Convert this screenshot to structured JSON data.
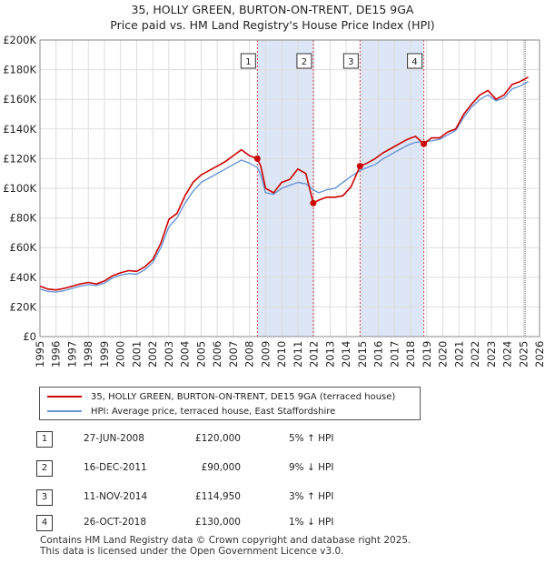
{
  "title_line1": "35, HOLLY GREEN, BURTON-ON-TRENT, DE15 9GA",
  "title_line2": "Price paid vs. HM Land Registry's House Price Index (HPI)",
  "chart_data": {
    "type": "line",
    "title": "35, HOLLY GREEN, BURTON-ON-TRENT, DE15 9GA — Price paid vs. HM Land Registry's House Price Index (HPI)",
    "xlabel": "",
    "ylabel": "",
    "xlim": [
      1995.0,
      2026.0
    ],
    "ylim": [
      0,
      200000
    ],
    "y_ticks": [
      0,
      20000,
      40000,
      60000,
      80000,
      100000,
      120000,
      140000,
      160000,
      180000,
      200000
    ],
    "y_tick_labels": [
      "£0",
      "£20K",
      "£40K",
      "£60K",
      "£80K",
      "£100K",
      "£120K",
      "£140K",
      "£160K",
      "£180K",
      "£200K"
    ],
    "x_tick_labels": [
      "1995",
      "1996",
      "1997",
      "1998",
      "1999",
      "2000",
      "2001",
      "2002",
      "2003",
      "2004",
      "2005",
      "2006",
      "2007",
      "2008",
      "2009",
      "2010",
      "2011",
      "2012",
      "2013",
      "2014",
      "2015",
      "2016",
      "2017",
      "2018",
      "2019",
      "2020",
      "2021",
      "2022",
      "2023",
      "2024",
      "2025",
      "2026"
    ],
    "grid": true,
    "colors": {
      "property": "#cc0000",
      "hpi": "#6a96d2",
      "shade": "#dde6f6",
      "grid": "#dddddd",
      "vline": "#cc0000",
      "data_end": "#555555"
    },
    "series": [
      {
        "name": "35, HOLLY GREEN, BURTON-ON-TRENT, DE15 9GA (terraced house)",
        "x": [
          1995.0,
          1995.5,
          1996.0,
          1996.5,
          1997.0,
          1997.5,
          1998.0,
          1998.5,
          1999.0,
          1999.5,
          2000.0,
          2000.5,
          2001.0,
          2001.5,
          2002.0,
          2002.5,
          2003.0,
          2003.5,
          2004.0,
          2004.5,
          2005.0,
          2005.5,
          2006.0,
          2006.5,
          2007.0,
          2007.5,
          2008.0,
          2008.49,
          2008.7,
          2009.0,
          2009.5,
          2010.0,
          2010.5,
          2011.0,
          2011.5,
          2011.96,
          2012.3,
          2012.8,
          2013.3,
          2013.8,
          2014.3,
          2014.86,
          2015.3,
          2015.8,
          2016.3,
          2016.8,
          2017.3,
          2017.8,
          2018.3,
          2018.82,
          2019.3,
          2019.8,
          2020.3,
          2020.8,
          2021.3,
          2021.8,
          2022.3,
          2022.8,
          2023.3,
          2023.8,
          2024.3,
          2024.8,
          2025.3
        ],
        "values": [
          34000,
          32000,
          31500,
          32500,
          34000,
          35500,
          36500,
          35500,
          37500,
          41000,
          43000,
          44500,
          44000,
          47000,
          52000,
          63000,
          79000,
          83000,
          95000,
          104000,
          109000,
          112000,
          115000,
          118000,
          122000,
          126000,
          122000,
          120000,
          115000,
          100000,
          97000,
          104000,
          106000,
          113000,
          110000,
          90000,
          92000,
          94000,
          94000,
          95000,
          101000,
          114950,
          117000,
          120000,
          124000,
          127000,
          130000,
          133000,
          135000,
          130000,
          134000,
          134000,
          138000,
          140000,
          150000,
          157000,
          163000,
          166000,
          160000,
          163000,
          170000,
          172000,
          175000
        ]
      },
      {
        "name": "HPI: Average price, terraced house, East Staffordshire",
        "x": [
          1995.0,
          1995.5,
          1996.0,
          1996.5,
          1997.0,
          1997.5,
          1998.0,
          1998.5,
          1999.0,
          1999.5,
          2000.0,
          2000.5,
          2001.0,
          2001.5,
          2002.0,
          2002.5,
          2003.0,
          2003.5,
          2004.0,
          2004.5,
          2005.0,
          2005.5,
          2006.0,
          2006.5,
          2007.0,
          2007.5,
          2008.0,
          2008.49,
          2008.7,
          2009.0,
          2009.5,
          2010.0,
          2010.5,
          2011.0,
          2011.5,
          2011.96,
          2012.3,
          2012.8,
          2013.3,
          2013.8,
          2014.3,
          2014.86,
          2015.3,
          2015.8,
          2016.3,
          2016.8,
          2017.3,
          2017.8,
          2018.3,
          2018.82,
          2019.3,
          2019.8,
          2020.3,
          2020.8,
          2021.3,
          2021.8,
          2022.3,
          2022.8,
          2023.3,
          2023.8,
          2024.3,
          2024.8,
          2025.3
        ],
        "values": [
          32000,
          30500,
          30000,
          31000,
          32500,
          34000,
          35000,
          34500,
          36000,
          39500,
          41500,
          42500,
          42000,
          45000,
          50000,
          60000,
          74000,
          80000,
          90000,
          98000,
          104000,
          107000,
          110000,
          113000,
          116000,
          119000,
          117000,
          114000,
          109000,
          97000,
          96000,
          100000,
          102000,
          104000,
          103000,
          99000,
          97000,
          99000,
          100000,
          104000,
          108000,
          112000,
          114000,
          116000,
          120000,
          123000,
          126000,
          129000,
          131000,
          131500,
          132000,
          133000,
          136000,
          139000,
          148000,
          155000,
          160000,
          163000,
          159000,
          161000,
          167000,
          169000,
          172000
        ]
      }
    ],
    "sales": [
      {
        "num": "1",
        "x": 2008.49,
        "date": "27-JUN-2008",
        "price": "£120,000",
        "value": 120000,
        "hpi": "5% ↑ HPI"
      },
      {
        "num": "2",
        "x": 2011.96,
        "date": "16-DEC-2011",
        "price": "£90,000",
        "value": 90000,
        "hpi": "9% ↓ HPI"
      },
      {
        "num": "3",
        "x": 2014.86,
        "date": "11-NOV-2014",
        "price": "£114,950",
        "value": 114950,
        "hpi": "3% ↑ HPI"
      },
      {
        "num": "4",
        "x": 2018.82,
        "date": "26-OCT-2018",
        "price": "£130,000",
        "value": 130000,
        "hpi": "1% ↓ HPI"
      }
    ],
    "shaded_spans": [
      [
        2008.49,
        2011.96
      ],
      [
        2014.86,
        2018.82
      ]
    ],
    "data_end_x": 2025.1
  },
  "legend": {
    "property_label": "35, HOLLY GREEN, BURTON-ON-TRENT, DE15 9GA (terraced house)",
    "hpi_label": "HPI: Average price, terraced house, East Staffordshire"
  },
  "footer": {
    "line1": "Contains HM Land Registry data © Crown copyright and database right 2025.",
    "line2": "This data is licensed under the Open Government Licence v3.0."
  }
}
